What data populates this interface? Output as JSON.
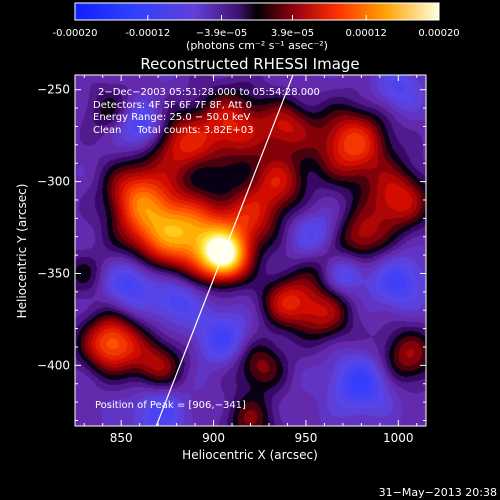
{
  "colorbar": {
    "tick_labels": [
      "-0.00020",
      "-0.00012",
      "−3.9e−05",
      "3.9e−05",
      "0.00012",
      "0.00020"
    ],
    "tick_values": [
      -0.0002,
      -0.00012,
      -3.9e-05,
      3.9e-05,
      0.00012,
      0.0002
    ],
    "range": [
      -0.0002,
      0.0002
    ],
    "unit_label": "(photons cm⁻² s⁻¹ asec⁻²)"
  },
  "chart_data": {
    "type": "heatmap",
    "title": "Reconstructed RHESSI Image",
    "xlabel": "Heliocentric X (arcsec)",
    "ylabel": "Heliocentric Y (arcsec)",
    "xlim": [
      825,
      1015
    ],
    "ylim": [
      -433,
      -242
    ],
    "x_ticks": [
      850,
      900,
      950,
      1000
    ],
    "x_tick_labels": [
      "850",
      "900",
      "950",
      "1000"
    ],
    "y_ticks": [
      -250,
      -300,
      -350,
      -400
    ],
    "y_tick_labels": [
      "−250",
      "−300",
      "−350",
      "−400"
    ],
    "annotations": [
      "2−Dec−2003 05:51:28.000 to 05:54:28.000",
      "Detectors: 4F 5F 6F 7F 8F, Att 0",
      "Energy Range: 25.0 − 50.0 keV",
      "Clean     Total counts: 3.82E+03"
    ],
    "peak_label": "Position of Peak = [906,−341]",
    "peak": {
      "x": 906,
      "y": -341
    },
    "limb_line": [
      [
        869,
        -433
      ],
      [
        943,
        -242
      ]
    ],
    "blobs": [
      {
        "x": 906,
        "y": -341,
        "amp": 1.25,
        "sigma": 9
      },
      {
        "x": 893,
        "y": -330,
        "amp": 0.75,
        "sigma": 14
      },
      {
        "x": 920,
        "y": -320,
        "amp": 0.55,
        "sigma": 12
      },
      {
        "x": 870,
        "y": -325,
        "amp": 0.85,
        "sigma": 15
      },
      {
        "x": 858,
        "y": -305,
        "amp": 0.6,
        "sigma": 12
      },
      {
        "x": 882,
        "y": -280,
        "amp": 0.6,
        "sigma": 12
      },
      {
        "x": 910,
        "y": -270,
        "amp": 0.65,
        "sigma": 14
      },
      {
        "x": 935,
        "y": -300,
        "amp": 0.55,
        "sigma": 11
      },
      {
        "x": 940,
        "y": -270,
        "amp": 0.5,
        "sigma": 10
      },
      {
        "x": 975,
        "y": -280,
        "amp": 0.8,
        "sigma": 14
      },
      {
        "x": 1000,
        "y": -310,
        "amp": 0.65,
        "sigma": 12
      },
      {
        "x": 980,
        "y": -330,
        "amp": 0.5,
        "sigma": 10
      },
      {
        "x": 960,
        "y": -345,
        "amp": 0.3,
        "sigma": 10
      },
      {
        "x": 940,
        "y": -365,
        "amp": 0.6,
        "sigma": 10
      },
      {
        "x": 960,
        "y": -372,
        "amp": 0.5,
        "sigma": 11
      },
      {
        "x": 845,
        "y": -388,
        "amp": 0.9,
        "sigma": 11
      },
      {
        "x": 870,
        "y": -400,
        "amp": 0.5,
        "sigma": 10
      },
      {
        "x": 925,
        "y": -400,
        "amp": 0.45,
        "sigma": 10
      },
      {
        "x": 1005,
        "y": -395,
        "amp": 0.5,
        "sigma": 11
      },
      {
        "x": 920,
        "y": -430,
        "amp": 0.4,
        "sigma": 10
      },
      {
        "x": 845,
        "y": -262,
        "amp": 0.3,
        "sigma": 10
      },
      {
        "x": 830,
        "y": -350,
        "amp": 0.25,
        "sigma": 9
      },
      {
        "x": 860,
        "y": -270,
        "amp": -0.5,
        "sigma": 9
      },
      {
        "x": 855,
        "y": -355,
        "amp": -0.45,
        "sigma": 10
      },
      {
        "x": 880,
        "y": -365,
        "amp": -0.35,
        "sigma": 9
      },
      {
        "x": 955,
        "y": -330,
        "amp": -0.35,
        "sigma": 9
      },
      {
        "x": 970,
        "y": -350,
        "amp": -0.45,
        "sigma": 8
      },
      {
        "x": 1000,
        "y": -355,
        "amp": -0.4,
        "sigma": 10
      },
      {
        "x": 905,
        "y": -385,
        "amp": -0.4,
        "sigma": 10
      },
      {
        "x": 980,
        "y": -410,
        "amp": -0.5,
        "sigma": 11
      },
      {
        "x": 870,
        "y": -425,
        "amp": -0.35,
        "sigma": 10
      },
      {
        "x": 1000,
        "y": -250,
        "amp": -0.3,
        "sigma": 9
      }
    ]
  },
  "footer": {
    "timestamp": "31−May−2013 20:38"
  }
}
